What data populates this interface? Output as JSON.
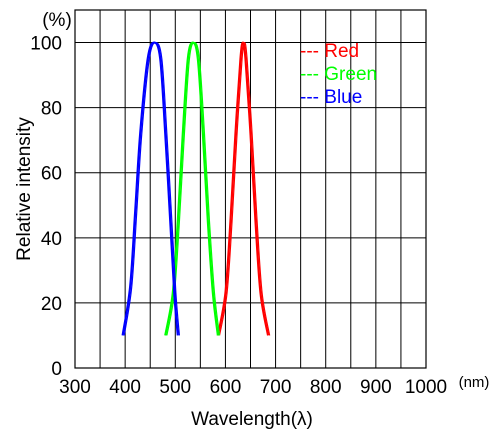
{
  "chart_data": {
    "type": "line",
    "title": "",
    "xlabel": "Wavelength(λ)",
    "ylabel": "Relative intensity",
    "y_unit": "(%)",
    "x_unit": "(nm)",
    "xlim": [
      300,
      1000
    ],
    "ylim": [
      0,
      110
    ],
    "x_ticks": [
      "300",
      "400",
      "500",
      "600",
      "700",
      "800",
      "900",
      "1000"
    ],
    "y_ticks": [
      "0",
      "20",
      "40",
      "60",
      "80",
      "100"
    ],
    "grid": true,
    "legend_position": "top-right",
    "series": [
      {
        "name": "Red",
        "color": "#ff0000",
        "x": [
          585,
          600,
          610,
          620,
          630,
          635,
          640,
          650,
          660,
          670,
          685
        ],
        "y": [
          10,
          23,
          45,
          72,
          95,
          100,
          95,
          72,
          45,
          23,
          10
        ]
      },
      {
        "name": "Green",
        "color": "#00ff00",
        "x": [
          480,
          495,
          505,
          515,
          525,
          535,
          545,
          555,
          565,
          575,
          585
        ],
        "y": [
          10,
          23,
          45,
          72,
          95,
          100,
          95,
          72,
          45,
          23,
          10
        ]
      },
      {
        "name": "Blue",
        "color": "#0000ff",
        "x": [
          395,
          410,
          420,
          430,
          445,
          458,
          470,
          480,
          490,
          498,
          505
        ],
        "y": [
          10,
          25,
          48,
          72,
          95,
          100,
          95,
          72,
          45,
          23,
          10
        ]
      }
    ]
  }
}
